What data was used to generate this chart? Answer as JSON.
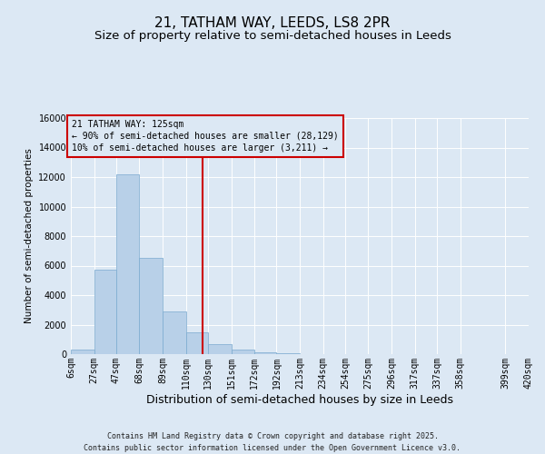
{
  "title": "21, TATHAM WAY, LEEDS, LS8 2PR",
  "subtitle": "Size of property relative to semi-detached houses in Leeds",
  "xlabel": "Distribution of semi-detached houses by size in Leeds",
  "ylabel": "Number of semi-detached properties",
  "footer_line1": "Contains HM Land Registry data © Crown copyright and database right 2025.",
  "footer_line2": "Contains public sector information licensed under the Open Government Licence v3.0.",
  "annotation_line1": "21 TATHAM WAY: 125sqm",
  "annotation_line2": "← 90% of semi-detached houses are smaller (28,129)",
  "annotation_line3": "10% of semi-detached houses are larger (3,211) →",
  "property_size": 125,
  "bar_color": "#b8d0e8",
  "bar_edge_color": "#7aaacf",
  "line_color": "#cc0000",
  "box_edge_color": "#cc0000",
  "background_color": "#dce8f4",
  "bin_edges": [
    6,
    27,
    47,
    68,
    89,
    110,
    130,
    151,
    172,
    192,
    213,
    234,
    254,
    275,
    296,
    317,
    337,
    358,
    399,
    420
  ],
  "bin_labels": [
    "6sqm",
    "27sqm",
    "47sqm",
    "68sqm",
    "89sqm",
    "110sqm",
    "130sqm",
    "151sqm",
    "172sqm",
    "192sqm",
    "213sqm",
    "234sqm",
    "254sqm",
    "275sqm",
    "296sqm",
    "317sqm",
    "337sqm",
    "358sqm",
    "399sqm",
    "420sqm"
  ],
  "values": [
    300,
    5750,
    12200,
    6500,
    2900,
    1480,
    680,
    290,
    150,
    80,
    30,
    10,
    4,
    2,
    1,
    0,
    0,
    0,
    0,
    0
  ],
  "ylim_max": 16000,
  "yticks": [
    0,
    2000,
    4000,
    6000,
    8000,
    10000,
    12000,
    14000,
    16000
  ],
  "grid_color": "#ffffff",
  "title_fontsize": 11,
  "subtitle_fontsize": 9.5,
  "tick_fontsize": 7,
  "ylabel_fontsize": 7.5,
  "xlabel_fontsize": 9,
  "footer_fontsize": 6,
  "annotation_fontsize": 7
}
